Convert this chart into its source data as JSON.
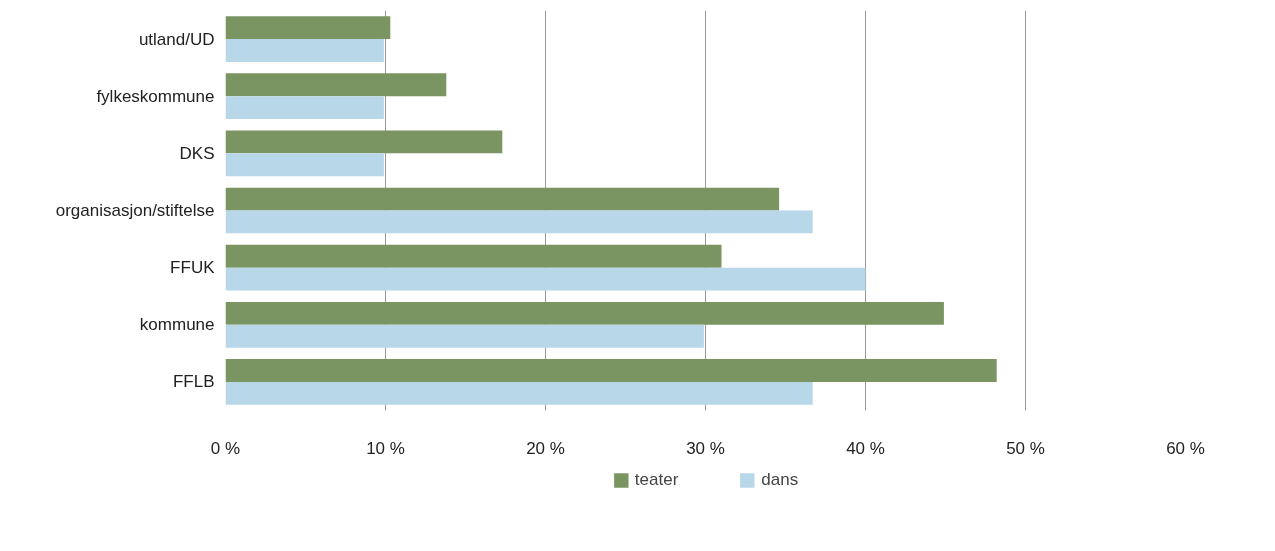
{
  "chart_data": {
    "type": "bar",
    "orientation": "horizontal",
    "categories": [
      "utland/UD",
      "fylkeskommune",
      "DKS",
      "organisasjon/stiftelse",
      "FFUK",
      "kommune",
      "FFLB"
    ],
    "series": [
      {
        "name": "teater",
        "color": "#7a9462",
        "values": [
          10.3,
          13.8,
          17.3,
          34.6,
          31.0,
          44.9,
          48.2
        ]
      },
      {
        "name": "dans",
        "color": "#b8d8ea",
        "values": [
          9.9,
          9.9,
          9.9,
          36.7,
          40.0,
          29.9,
          36.7
        ]
      }
    ],
    "xlim": [
      0,
      60
    ],
    "xticks": [
      {
        "value": 0,
        "label": "0 %"
      },
      {
        "value": 10,
        "label": "10 %"
      },
      {
        "value": 20,
        "label": "20 %"
      },
      {
        "value": 30,
        "label": "30 %"
      },
      {
        "value": 40,
        "label": "40 %"
      },
      {
        "value": 50,
        "label": "50 %"
      },
      {
        "value": 60,
        "label": "60 %"
      }
    ],
    "grid": "x",
    "legend": "bottom"
  }
}
